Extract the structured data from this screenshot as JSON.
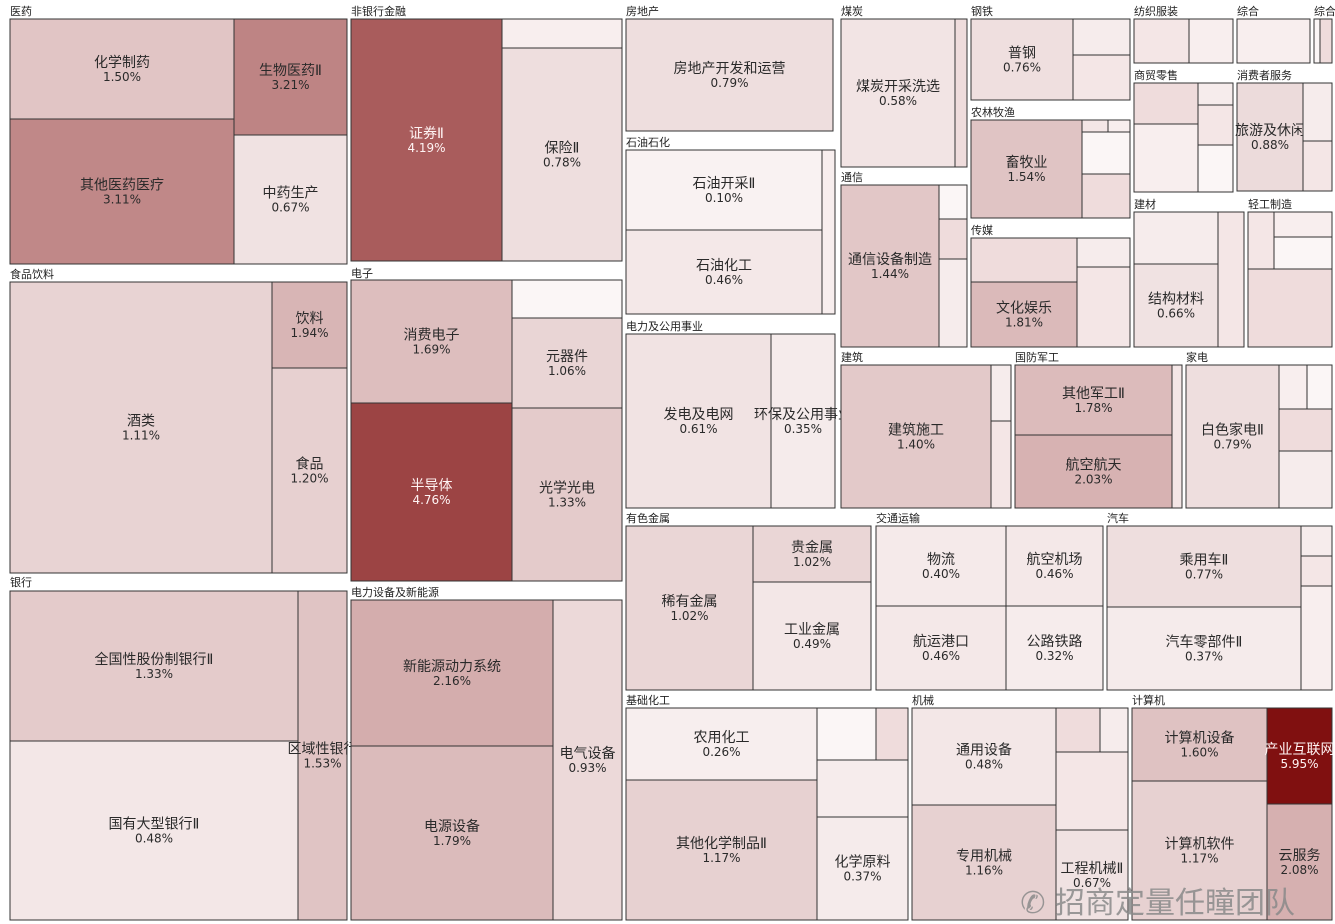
{
  "chart_data": {
    "type": "treemap",
    "value_unit": "%",
    "color_scale": {
      "low": "#ffffff",
      "high": "#7f0e0e"
    },
    "sectors": [
      {
        "name": "医药",
        "leaves": [
          {
            "name": "化学制药",
            "value": 1.5
          },
          {
            "name": "生物医药Ⅱ",
            "value": 3.21
          },
          {
            "name": "其他医药医疗",
            "value": 3.11
          },
          {
            "name": "中药生产",
            "value": 0.67
          }
        ]
      },
      {
        "name": "非银行金融",
        "leaves": [
          {
            "name": "证券Ⅱ",
            "value": 4.19
          },
          {
            "name": "保险Ⅱ",
            "value": 0.78
          }
        ]
      },
      {
        "name": "房地产",
        "leaves": [
          {
            "name": "房地产开发和运营",
            "value": 0.79
          }
        ]
      },
      {
        "name": "煤炭",
        "leaves": [
          {
            "name": "煤炭开采洗选",
            "value": 0.58
          }
        ]
      },
      {
        "name": "钢铁",
        "leaves": [
          {
            "name": "普钢",
            "value": 0.76
          }
        ]
      },
      {
        "name": "纺织服装",
        "leaves": []
      },
      {
        "name": "综合",
        "leaves": []
      },
      {
        "name": "综合",
        "leaves": []
      },
      {
        "name": "商贸零售",
        "leaves": []
      },
      {
        "name": "消费者服务",
        "leaves": [
          {
            "name": "旅游及休闲",
            "value": 0.88
          }
        ]
      },
      {
        "name": "农林牧渔",
        "leaves": [
          {
            "name": "畜牧业",
            "value": 1.54
          }
        ]
      },
      {
        "name": "石油石化",
        "leaves": [
          {
            "name": "石油开采Ⅱ",
            "value": 0.1
          },
          {
            "name": "石油化工",
            "value": 0.46
          }
        ]
      },
      {
        "name": "通信",
        "leaves": [
          {
            "name": "通信设备制造",
            "value": 1.44
          }
        ]
      },
      {
        "name": "传媒",
        "leaves": [
          {
            "name": "文化娱乐",
            "value": 1.81
          }
        ]
      },
      {
        "name": "建材",
        "leaves": [
          {
            "name": "结构材料",
            "value": 0.66
          }
        ]
      },
      {
        "name": "轻工制造",
        "leaves": []
      },
      {
        "name": "食品饮料",
        "leaves": [
          {
            "name": "酒类",
            "value": 1.11
          },
          {
            "name": "饮料",
            "value": 1.94
          },
          {
            "name": "食品",
            "value": 1.2
          }
        ]
      },
      {
        "name": "电子",
        "leaves": [
          {
            "name": "消费电子",
            "value": 1.69
          },
          {
            "name": "元器件",
            "value": 1.06
          },
          {
            "name": "半导体",
            "value": 4.76
          },
          {
            "name": "光学光电",
            "value": 1.33
          }
        ]
      },
      {
        "name": "电力及公用事业",
        "leaves": [
          {
            "name": "发电及电网",
            "value": 0.61
          },
          {
            "name": "环保及公用事业",
            "value": 0.35
          }
        ]
      },
      {
        "name": "建筑",
        "leaves": [
          {
            "name": "建筑施工",
            "value": 1.4
          }
        ]
      },
      {
        "name": "国防军工",
        "leaves": [
          {
            "name": "其他军工Ⅱ",
            "value": 1.78
          },
          {
            "name": "航空航天",
            "value": 2.03
          }
        ]
      },
      {
        "name": "家电",
        "leaves": [
          {
            "name": "白色家电Ⅱ",
            "value": 0.79
          }
        ]
      },
      {
        "name": "有色金属",
        "leaves": [
          {
            "name": "稀有金属",
            "value": 1.02
          },
          {
            "name": "贵金属",
            "value": 1.02
          },
          {
            "name": "工业金属",
            "value": 0.49
          }
        ]
      },
      {
        "name": "交通运输",
        "leaves": [
          {
            "name": "物流",
            "value": 0.4
          },
          {
            "name": "航空机场",
            "value": 0.46
          },
          {
            "name": "航运港口",
            "value": 0.46
          },
          {
            "name": "公路铁路",
            "value": 0.32
          }
        ]
      },
      {
        "name": "汽车",
        "leaves": [
          {
            "name": "乘用车Ⅱ",
            "value": 0.77
          },
          {
            "name": "汽车零部件Ⅱ",
            "value": 0.37
          }
        ]
      },
      {
        "name": "银行",
        "leaves": [
          {
            "name": "全国性股份制银行Ⅱ",
            "value": 1.33
          },
          {
            "name": "国有大型银行Ⅱ",
            "value": 0.48
          },
          {
            "name": "区域性银行",
            "value": 1.53
          }
        ]
      },
      {
        "name": "电力设备及新能源",
        "leaves": [
          {
            "name": "新能源动力系统",
            "value": 2.16
          },
          {
            "name": "电源设备",
            "value": 1.79
          },
          {
            "name": "电气设备",
            "value": 0.93
          }
        ]
      },
      {
        "name": "基础化工",
        "leaves": [
          {
            "name": "农用化工",
            "value": 0.26
          },
          {
            "name": "其他化学制品Ⅱ",
            "value": 1.17
          },
          {
            "name": "化学原料",
            "value": 0.37
          }
        ]
      },
      {
        "name": "机械",
        "leaves": [
          {
            "name": "通用设备",
            "value": 0.48
          },
          {
            "name": "专用机械",
            "value": 1.16
          },
          {
            "name": "工程机械Ⅱ",
            "value": 0.67
          }
        ]
      },
      {
        "name": "计算机",
        "leaves": [
          {
            "name": "计算机设备",
            "value": 1.6
          },
          {
            "name": "产业互联网",
            "value": 5.95
          },
          {
            "name": "计算机软件",
            "value": 1.17
          },
          {
            "name": "云服务",
            "value": 2.08
          }
        ]
      }
    ]
  },
  "watermark": {
    "text": "招商定量任瞳团队",
    "icon": "wechat-icon"
  }
}
